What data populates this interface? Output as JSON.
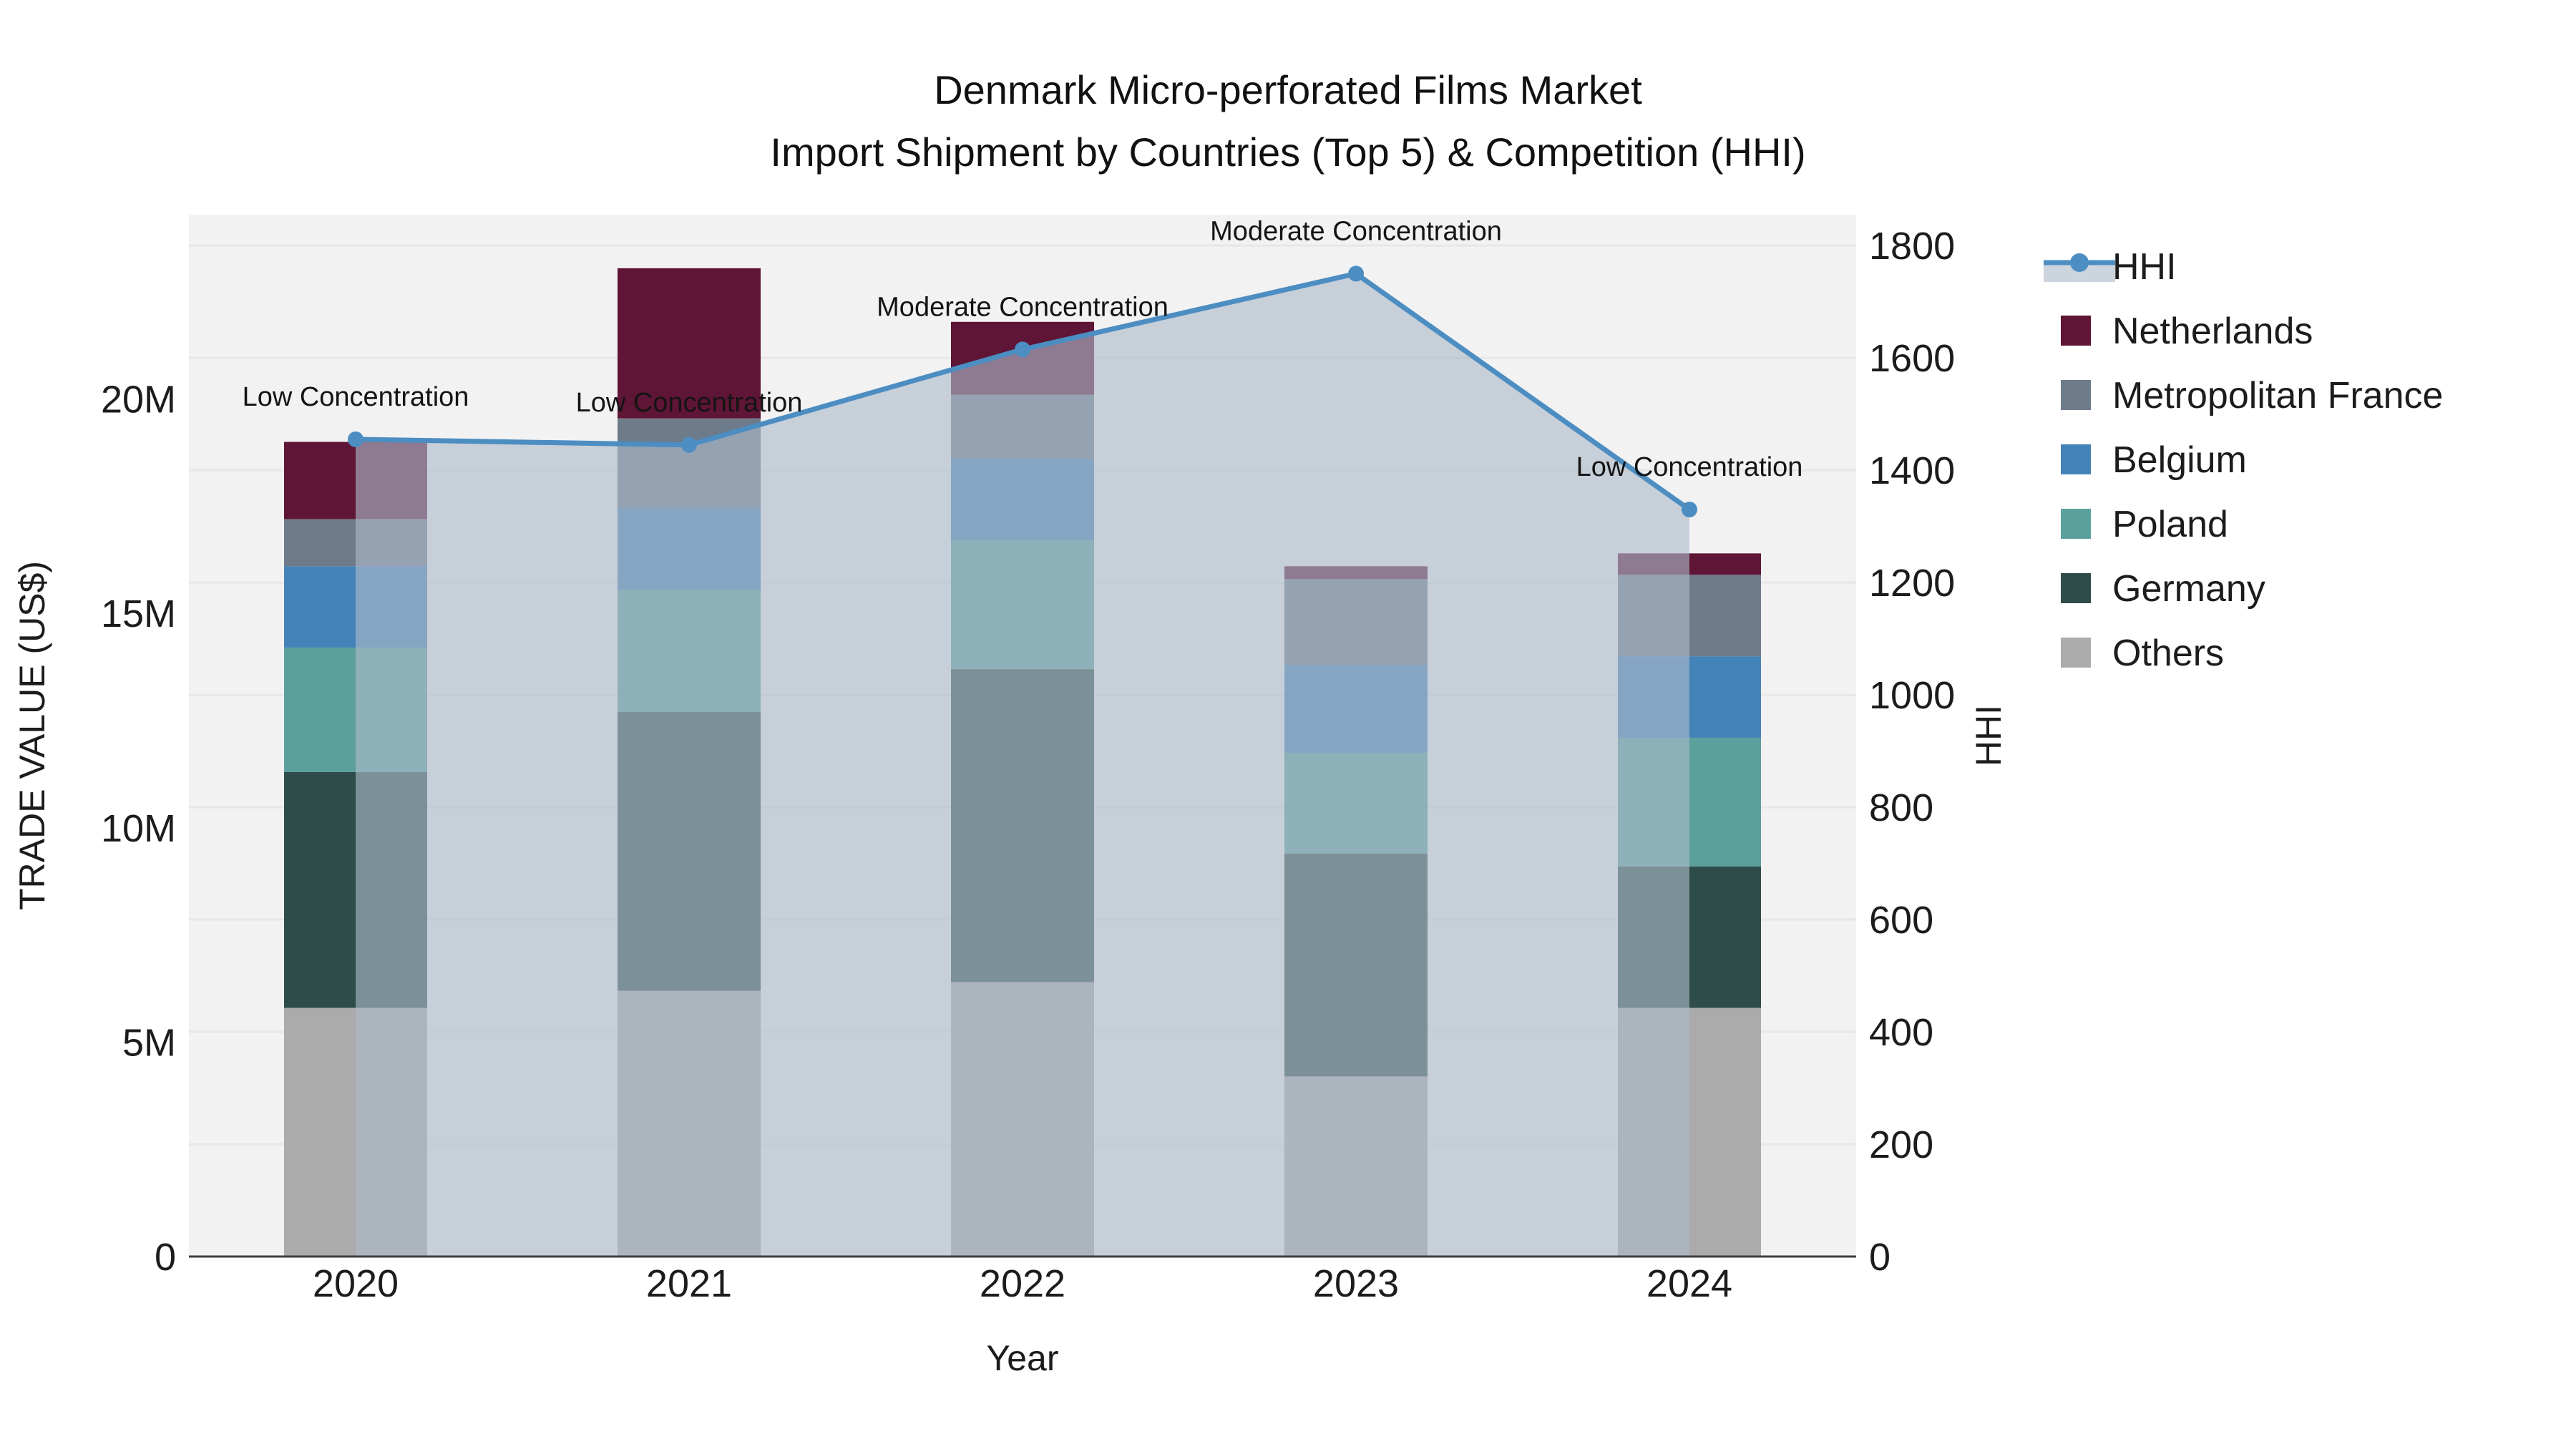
{
  "title": "Denmark Micro-perforated Films Market",
  "subtitle": "Import Shipment by Countries (Top 5) & Competition (HHI)",
  "chart_data": {
    "type": "bar",
    "subtype": "stacked-bar-with-line-overlay",
    "categories": [
      "2020",
      "2021",
      "2022",
      "2023",
      "2024"
    ],
    "value_unit": "millions US$",
    "series": [
      {
        "name": "Others",
        "color": "#ABABAB",
        "values": [
          5.8,
          6.2,
          6.4,
          4.2,
          5.8
        ]
      },
      {
        "name": "Germany",
        "color": "#2E4C49",
        "values": [
          5.5,
          6.5,
          7.3,
          5.2,
          3.3
        ]
      },
      {
        "name": "Poland",
        "color": "#5CA09E",
        "values": [
          2.9,
          2.85,
          3.0,
          2.35,
          3.0
        ]
      },
      {
        "name": "Belgium",
        "color": "#4483B8",
        "values": [
          1.9,
          1.9,
          1.9,
          2.05,
          1.9
        ]
      },
      {
        "name": "Metropolitan France",
        "color": "#6E7B8B",
        "values": [
          1.1,
          2.1,
          1.5,
          2.0,
          1.9
        ]
      },
      {
        "name": "Netherlands",
        "color": "#5F1535",
        "values": [
          1.8,
          3.5,
          1.7,
          0.3,
          0.5
        ]
      }
    ],
    "totals": [
      19.0,
      23.05,
      21.8,
      16.1,
      16.4
    ],
    "line_series": {
      "name": "HHI",
      "axis": "right",
      "color": "#4C8DC2",
      "area_fill_color": "rgba(173,185,202,0.62)",
      "values": [
        1455,
        1445,
        1615,
        1750,
        1330
      ]
    },
    "annotations": [
      {
        "category": "2020",
        "text": "Low Concentration"
      },
      {
        "category": "2021",
        "text": "Low Concentration"
      },
      {
        "category": "2022",
        "text": "Moderate Concentration"
      },
      {
        "category": "2023",
        "text": "Moderate Concentration"
      },
      {
        "category": "2024",
        "text": "Low Concentration"
      }
    ],
    "x_axis": {
      "title": "Year"
    },
    "y_left": {
      "title": "TRADE VALUE (US$)",
      "ticks": [
        {
          "label": "0",
          "value": 0
        },
        {
          "label": "5M",
          "value": 5
        },
        {
          "label": "10M",
          "value": 10
        },
        {
          "label": "15M",
          "value": 15
        },
        {
          "label": "20M",
          "value": 20
        }
      ],
      "range": [
        0,
        24.3
      ]
    },
    "y_right": {
      "title": "HHI",
      "tick_values": [
        0,
        200,
        400,
        600,
        800,
        1000,
        1200,
        1400,
        1600,
        1800
      ],
      "range": [
        0,
        1855
      ]
    },
    "legend": {
      "position": "right",
      "entries": [
        "HHI",
        "Netherlands",
        "Metropolitan France",
        "Belgium",
        "Poland",
        "Germany",
        "Others"
      ]
    },
    "colors": {
      "plot_background": "#F2F2F2",
      "grid": "#E7E7E7",
      "axis_line": "#3E3E3E",
      "text": "#1C1C1C"
    }
  }
}
